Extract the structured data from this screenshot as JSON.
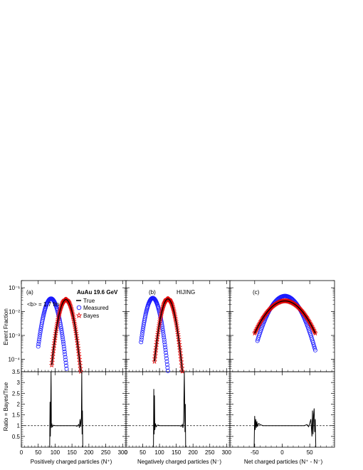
{
  "figure": {
    "y_label_top": "Event Fraction",
    "y_label_bottom": "Ratio = Bayes/True",
    "legend": {
      "title": "AuAu 19.6 GeV",
      "true_label": "True",
      "measured_label": "Measured",
      "bayes_label": "Bayes"
    },
    "impact_label": "<b> = 1.7 fm",
    "model_label": "HIJING",
    "colors": {
      "true": "#000000",
      "measured": "#1a1aff",
      "bayes": "#e00000",
      "reference_line": "#000000"
    }
  },
  "chart_data": [
    {
      "type": "line",
      "panel_label": "(a)",
      "xlabel": "Positively charged particles (N⁺)",
      "xlim": [
        0,
        310
      ],
      "xticks": [
        "0",
        "50",
        "100",
        "150",
        "200",
        "250",
        "300"
      ],
      "xtick_values": [
        0,
        50,
        100,
        150,
        200,
        250,
        300
      ],
      "top": {
        "yscale": "log",
        "ylim": [
          3e-05,
          0.2
        ],
        "yticks": [
          "10⁻⁴",
          "10⁻³",
          "10⁻²",
          "10⁻¹"
        ],
        "series": [
          {
            "name": "Measured",
            "marker": "circle",
            "peak_x": 88,
            "peak_y": 0.035,
            "sigma": 12.5,
            "x_range": [
              50,
              135
            ]
          },
          {
            "name": "Bayes",
            "marker": "star",
            "peak_x": 132,
            "peak_y": 0.032,
            "sigma": 11.8,
            "x_range": [
              90,
              180
            ]
          },
          {
            "name": "True",
            "marker": "line",
            "peak_x": 132,
            "peak_y": 0.032,
            "sigma": 11.8,
            "x_range": [
              90,
              180
            ]
          }
        ]
      },
      "bottom": {
        "ylim": [
          0,
          3.5
        ],
        "yticks": [
          "0.5",
          "1",
          "1.5",
          "2",
          "2.5",
          "3",
          "3.5"
        ],
        "reference_y": 1,
        "ratio_x": [
          84,
          85,
          86,
          87,
          88,
          89,
          90,
          92,
          95,
          100,
          110,
          120,
          130,
          140,
          150,
          160,
          165,
          170,
          172,
          174,
          176,
          178,
          179,
          180,
          181,
          182
        ],
        "ratio_y": [
          0,
          2.1,
          0.5,
          1.9,
          3.5,
          0.9,
          1.1,
          0.95,
          1.02,
          1.0,
          1.0,
          1.0,
          1.0,
          1.0,
          1.0,
          1.0,
          0.97,
          1.05,
          0.9,
          1.3,
          0.95,
          1.4,
          3.5,
          0.6,
          1.7,
          0
        ]
      }
    },
    {
      "type": "line",
      "panel_label": "(b)",
      "xlabel": "Negatively charged particles (N⁻)",
      "xlim": [
        0,
        310
      ],
      "xticks": [
        "0",
        "50",
        "100",
        "150",
        "200",
        "250",
        "300"
      ],
      "xtick_values": [
        0,
        50,
        100,
        150,
        200,
        250,
        300
      ],
      "top": {
        "yscale": "log",
        "ylim": [
          3e-05,
          0.2
        ],
        "series": [
          {
            "name": "Measured",
            "marker": "circle",
            "peak_x": 80,
            "peak_y": 0.037,
            "sigma": 12,
            "x_range": [
              45,
              125
            ]
          },
          {
            "name": "Bayes",
            "marker": "star",
            "peak_x": 125,
            "peak_y": 0.034,
            "sigma": 11.5,
            "x_range": [
              85,
              170
            ]
          },
          {
            "name": "True",
            "marker": "line",
            "peak_x": 125,
            "peak_y": 0.034,
            "sigma": 11.5,
            "x_range": [
              85,
              170
            ]
          }
        ]
      },
      "bottom": {
        "ylim": [
          0,
          3.5
        ],
        "reference_y": 1,
        "ratio_x": [
          82,
          83,
          84,
          85,
          86,
          88,
          90,
          95,
          100,
          110,
          120,
          130,
          140,
          150,
          160,
          165,
          168,
          170,
          172,
          174,
          176,
          177,
          178
        ],
        "ratio_y": [
          0,
          2.7,
          0.6,
          2.4,
          0.8,
          1.1,
          0.95,
          1.03,
          1.0,
          1.0,
          1.0,
          1.0,
          1.0,
          1.0,
          1.0,
          0.97,
          1.05,
          0.9,
          1.2,
          3.5,
          0.7,
          2.0,
          0
        ]
      }
    },
    {
      "type": "line",
      "panel_label": "(c)",
      "xlabel": "Net charged particles (N⁺ - N⁻)",
      "xlim": [
        -95,
        95
      ],
      "xticks": [
        "-50",
        "0",
        "50"
      ],
      "xtick_values": [
        -50,
        0,
        50
      ],
      "top": {
        "yscale": "log",
        "ylim": [
          3e-05,
          0.2
        ],
        "series": [
          {
            "name": "Measured",
            "marker": "circle",
            "peak_x": 5,
            "peak_y": 0.045,
            "sigma": 17,
            "x_range": [
              -45,
              60
            ]
          },
          {
            "name": "Bayes",
            "marker": "star",
            "peak_x": 5,
            "peak_y": 0.028,
            "sigma": 22,
            "x_range": [
              -50,
              60
            ]
          },
          {
            "name": "True",
            "marker": "line",
            "peak_x": 5,
            "peak_y": 0.028,
            "sigma": 22,
            "x_range": [
              -50,
              60
            ]
          }
        ]
      },
      "bottom": {
        "ylim": [
          0,
          3.5
        ],
        "reference_y": 1,
        "ratio_x": [
          -51,
          -50,
          -49,
          -48,
          -47,
          -46,
          -45,
          -43,
          -40,
          -35,
          -30,
          -20,
          -10,
          0,
          10,
          20,
          30,
          40,
          45,
          48,
          50,
          52,
          54,
          55,
          56,
          57,
          58,
          59,
          60,
          61
        ],
        "ratio_y": [
          0,
          1.45,
          0.8,
          1.3,
          0.9,
          1.2,
          0.95,
          1.1,
          1.05,
          1.0,
          1.0,
          1.0,
          1.0,
          1.0,
          1.0,
          1.0,
          1.0,
          1.0,
          1.05,
          0.95,
          1.1,
          1.3,
          0.5,
          1.7,
          0.6,
          1.5,
          1.8,
          0.7,
          1.3,
          0
        ]
      }
    }
  ]
}
